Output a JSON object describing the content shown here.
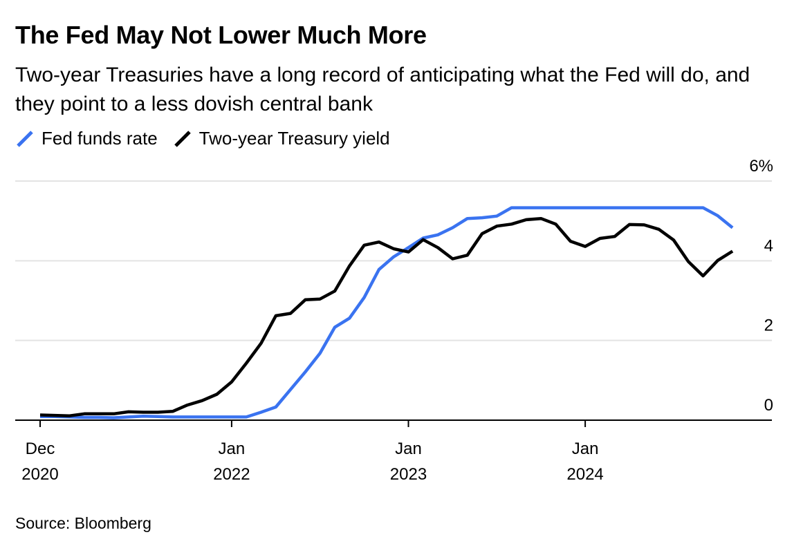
{
  "title": "The Fed May Not Lower Much More",
  "subtitle": "Two-year Treasuries have a long record of anticipating what the Fed will do, and they point to a less dovish central bank",
  "source": "Source: Bloomberg",
  "colors": {
    "fed_funds": "#3a73f0",
    "treasury": "#000000",
    "grid": "#e3e3e3",
    "axis": "#000000"
  },
  "chart_data": {
    "type": "line",
    "legend_position": "top-left",
    "grid": true,
    "ylim": [
      0,
      6
    ],
    "y_ticks": [
      {
        "value": 0,
        "label": "0"
      },
      {
        "value": 2,
        "label": "2"
      },
      {
        "value": 4,
        "label": "4"
      },
      {
        "value": 6,
        "label": "6%"
      }
    ],
    "x_ticks": [
      {
        "index": 0,
        "line1": "Dec",
        "line2": "2020"
      },
      {
        "index": 13,
        "line1": "Jan",
        "line2": "2022"
      },
      {
        "index": 25,
        "line1": "Jan",
        "line2": "2023"
      },
      {
        "index": 37,
        "line1": "Jan",
        "line2": "2024"
      }
    ],
    "x_range": [
      "2020-12",
      "2025-02"
    ],
    "x": [
      "2020-12",
      "2021-01",
      "2021-02",
      "2021-03",
      "2021-04",
      "2021-05",
      "2021-06",
      "2021-07",
      "2021-08",
      "2021-09",
      "2021-10",
      "2021-11",
      "2021-12",
      "2022-01",
      "2022-02",
      "2022-03",
      "2022-04",
      "2022-05",
      "2022-06",
      "2022-07",
      "2022-08",
      "2022-09",
      "2022-10",
      "2022-11",
      "2022-12",
      "2023-01",
      "2023-02",
      "2023-03",
      "2023-04",
      "2023-05",
      "2023-06",
      "2023-07",
      "2023-08",
      "2023-09",
      "2023-10",
      "2023-11",
      "2023-12",
      "2024-01",
      "2024-02",
      "2024-03",
      "2024-04",
      "2024-05",
      "2024-06",
      "2024-07",
      "2024-08",
      "2024-09",
      "2024-10",
      "2024-11"
    ],
    "series": [
      {
        "name": "Fed funds rate",
        "color": "#3a73f0",
        "values": [
          0.09,
          0.09,
          0.08,
          0.07,
          0.07,
          0.06,
          0.08,
          0.1,
          0.09,
          0.08,
          0.08,
          0.08,
          0.08,
          0.08,
          0.08,
          0.2,
          0.33,
          0.77,
          1.21,
          1.68,
          2.33,
          2.56,
          3.08,
          3.78,
          4.1,
          4.33,
          4.57,
          4.65,
          4.83,
          5.06,
          5.08,
          5.12,
          5.33,
          5.33,
          5.33,
          5.33,
          5.33,
          5.33,
          5.33,
          5.33,
          5.33,
          5.33,
          5.33,
          5.33,
          5.33,
          5.33,
          5.13,
          4.83
        ]
      },
      {
        "name": "Two-year Treasury yield",
        "color": "#000000",
        "values": [
          0.13,
          0.12,
          0.11,
          0.16,
          0.16,
          0.16,
          0.21,
          0.2,
          0.2,
          0.22,
          0.38,
          0.49,
          0.65,
          0.96,
          1.43,
          1.93,
          2.62,
          2.68,
          3.02,
          3.04,
          3.24,
          3.87,
          4.39,
          4.47,
          4.3,
          4.22,
          4.53,
          4.33,
          4.05,
          4.14,
          4.68,
          4.87,
          4.92,
          5.03,
          5.06,
          4.92,
          4.49,
          4.36,
          4.56,
          4.61,
          4.91,
          4.9,
          4.79,
          4.52,
          3.98,
          3.62,
          4.01,
          4.24
        ]
      }
    ]
  }
}
